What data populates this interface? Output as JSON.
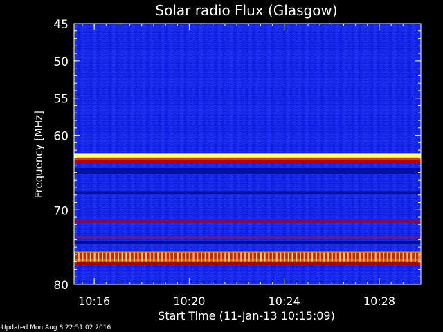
{
  "chart_data": {
    "type": "heatmap",
    "title": "Solar radio Flux (Glasgow)",
    "xlabel": "Start Time (11-Jan-13 10:15:09)",
    "ylabel": "Frequency [MHz]",
    "x_start": "10:15:09",
    "x_end": "10:29:45",
    "x_ticks": [
      "10:16",
      "10:20",
      "10:24",
      "10:28"
    ],
    "x_minor_step_min": 0.5,
    "ylim": [
      45,
      80
    ],
    "y_inverted": true,
    "y_ticks": [
      45,
      50,
      55,
      60,
      70,
      80
    ],
    "y_minor_step": 1,
    "colormap": [
      "#000080",
      "#0010e0",
      "#2030ff",
      "#c00000",
      "#ff4000",
      "#ffff60"
    ],
    "background_color": "#1426e6",
    "bands": [
      {
        "from": 62.4,
        "to": 63.0,
        "level": "bright",
        "color": "#ffff80"
      },
      {
        "from": 63.0,
        "to": 63.3,
        "level": "high",
        "color": "#d04010"
      },
      {
        "from": 63.3,
        "to": 63.7,
        "level": "medium",
        "color": "#b00010"
      },
      {
        "from": 64.4,
        "to": 65.2,
        "level": "low",
        "color": "#0010a0"
      },
      {
        "from": 67.5,
        "to": 67.9,
        "level": "low",
        "color": "#0010a0"
      },
      {
        "from": 71.3,
        "to": 71.7,
        "level": "medium",
        "color": "#a00030"
      },
      {
        "from": 73.5,
        "to": 73.8,
        "level": "medium",
        "color": "#c00020"
      },
      {
        "from": 74.2,
        "to": 74.6,
        "level": "low",
        "color": "#000a90"
      },
      {
        "from": 75.6,
        "to": 75.8,
        "level": "high",
        "color": "#ffa040"
      },
      {
        "from": 75.8,
        "to": 76.6,
        "level": "high",
        "color": "#d02010"
      },
      {
        "from": 76.6,
        "to": 77.0,
        "level": "medium",
        "color": "#ff5000"
      },
      {
        "from": 77.0,
        "to": 77.4,
        "level": "medium",
        "color": "#b00000"
      }
    ],
    "pulse_band": {
      "from": 75.8,
      "to": 77.0,
      "interval_s": 10,
      "color": "#ffe080"
    }
  },
  "footer": {
    "updated": "Updated Mon Aug  8 22:51:02 2016"
  }
}
